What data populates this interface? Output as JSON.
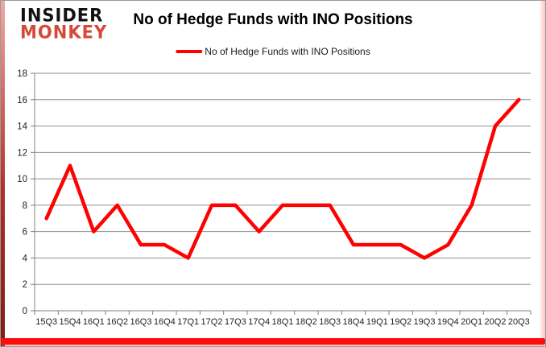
{
  "logo": {
    "line1": "INSIDER",
    "line2": "MONKEY",
    "color1": "#111111",
    "color2": "#d44a38"
  },
  "header": {
    "title": "No of Hedge Funds with INO Positions"
  },
  "legend": {
    "label": "No of Hedge Funds with INO Positions",
    "line_color": "#fe0101"
  },
  "chart_data": {
    "type": "line",
    "title": "No of Hedge Funds with INO Positions",
    "categories": [
      "15Q3",
      "15Q4",
      "16Q1",
      "16Q2",
      "16Q3",
      "16Q4",
      "17Q1",
      "17Q2",
      "17Q3",
      "17Q4",
      "18Q1",
      "18Q2",
      "18Q3",
      "18Q4",
      "19Q1",
      "19Q2",
      "19Q3",
      "19Q4",
      "20Q1",
      "20Q2",
      "20Q3"
    ],
    "series": [
      {
        "name": "No of Hedge Funds with INO Positions",
        "color": "#fe0101",
        "values": [
          7,
          11,
          6,
          8,
          5,
          5,
          4,
          8,
          8,
          6,
          8,
          8,
          8,
          5,
          5,
          5,
          4,
          5,
          8,
          14,
          16
        ]
      }
    ],
    "ylim": [
      0,
      18
    ],
    "yticks": [
      0,
      2,
      4,
      6,
      8,
      10,
      12,
      14,
      16,
      18
    ],
    "xlabel": "",
    "ylabel": "",
    "grid": true,
    "legend_position": "top",
    "grid_color": "#8f8f8f",
    "axis_color": "#808080",
    "tick_label_color": "#1f1f1f",
    "accent_bottom_color": "#fa0f0a"
  }
}
